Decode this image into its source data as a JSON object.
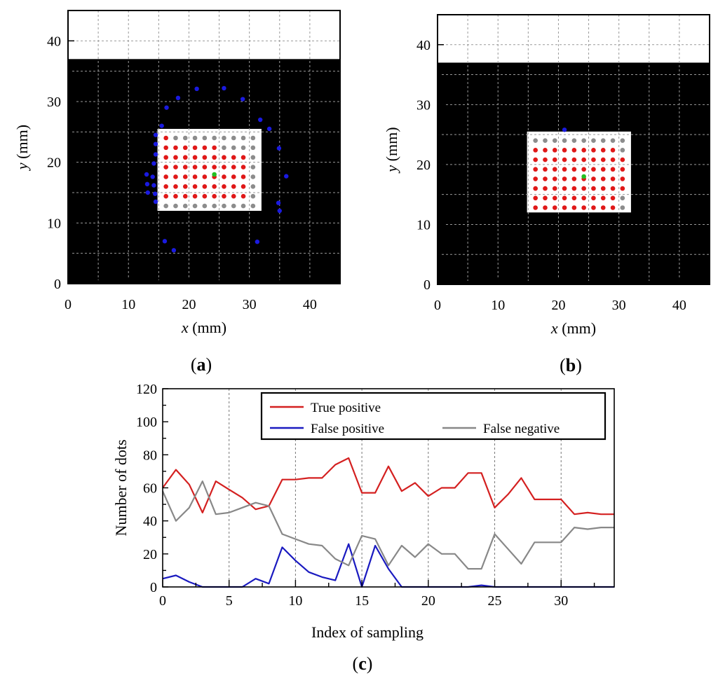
{
  "chart_data": [
    {
      "type": "scatter",
      "panel_label": "a",
      "title": "",
      "xlabel": {
        "var": "x",
        "unit": " (mm)"
      },
      "ylabel": {
        "var": "y",
        "unit": " (mm)"
      },
      "xlim": [
        0,
        45
      ],
      "ylim": [
        0,
        45
      ],
      "xticks": [
        "0",
        "10",
        "20",
        "30",
        "40"
      ],
      "yticks": [
        "0",
        "10",
        "20",
        "30",
        "40"
      ],
      "grid": true,
      "dark_region_y_max": 37,
      "white_patch": {
        "x": [
          14.8,
          32
        ],
        "y": [
          12,
          25.5
        ]
      },
      "grid_dots": {
        "x_start": 16.2,
        "x_step": 1.6,
        "cols": 10,
        "y_start": 12.8,
        "y_step": 1.6,
        "rows": 8
      },
      "dot_classes": [
        "gggggggggg",
        "rrrrrrrrrg",
        "rrrrrrrrrg",
        "rrrrrrrrrg",
        "rrrrrrrrrg",
        "rrrrrrrrrg",
        "rrrrrrgggg",
        "rggggggggg"
      ],
      "center_point": {
        "x": 24.2,
        "y": 18
      },
      "false_positive_points": [
        [
          14.5,
          24.5
        ],
        [
          14.5,
          23
        ],
        [
          14.5,
          21.3
        ],
        [
          14.2,
          19.8
        ],
        [
          13,
          18
        ],
        [
          14,
          17.6
        ],
        [
          13.1,
          16.4
        ],
        [
          14.2,
          16.2
        ],
        [
          13.2,
          15
        ],
        [
          14.4,
          14.8
        ],
        [
          14.5,
          13.5
        ],
        [
          15.5,
          26
        ],
        [
          16.3,
          29
        ],
        [
          18.2,
          30.6
        ],
        [
          21.3,
          32.1
        ],
        [
          25.8,
          32.2
        ],
        [
          28.9,
          30.4
        ],
        [
          31.8,
          27
        ],
        [
          33.3,
          25.5
        ],
        [
          34.9,
          22.3
        ],
        [
          36.1,
          17.7
        ],
        [
          34.8,
          13.3
        ],
        [
          35,
          12
        ],
        [
          31.3,
          6.9
        ],
        [
          16,
          7
        ],
        [
          17.5,
          5.5
        ]
      ]
    },
    {
      "type": "scatter",
      "panel_label": "b",
      "title": "",
      "xlabel": {
        "var": "x",
        "unit": " (mm)"
      },
      "ylabel": {
        "var": "y",
        "unit": " (mm)"
      },
      "xlim": [
        0,
        45
      ],
      "ylim": [
        0,
        45
      ],
      "xticks": [
        "0",
        "10",
        "20",
        "30",
        "40"
      ],
      "yticks": [
        "0",
        "10",
        "20",
        "30",
        "40"
      ],
      "grid": true,
      "dark_region_y_max": 37,
      "white_patch": {
        "x": [
          14.8,
          32
        ],
        "y": [
          12,
          25.5
        ]
      },
      "grid_dots": {
        "x_start": 16.2,
        "x_step": 1.6,
        "cols": 10,
        "y_start": 12.8,
        "y_step": 1.6,
        "rows": 8
      },
      "dot_classes": [
        "rrrrrrrrrg",
        "rrrrrrrrrg",
        "rrrrrrrrrr",
        "rrrrrrrrrr",
        "rrrrrrrrrr",
        "rrrrrrrrrr",
        "rrrrrrrrrg",
        "gggggggggg"
      ],
      "center_point": {
        "x": 24.2,
        "y": 18
      },
      "false_positive_points": [
        [
          21,
          25.8
        ]
      ]
    },
    {
      "type": "line",
      "panel_label": "c",
      "title": "",
      "xlabel": "Index of sampling",
      "ylabel": "Number of dots",
      "xlim": [
        0,
        34
      ],
      "ylim": [
        0,
        120
      ],
      "xticks": [
        "0",
        "5",
        "10",
        "15",
        "20",
        "25",
        "30"
      ],
      "yticks": [
        "0",
        "20",
        "40",
        "60",
        "80",
        "100",
        "120"
      ],
      "grid": "vertical",
      "legend_position": "top-right",
      "x": [
        0,
        1,
        2,
        3,
        4,
        5,
        6,
        7,
        8,
        9,
        10,
        11,
        12,
        13,
        14,
        15,
        16,
        17,
        18,
        19,
        20,
        21,
        22,
        23,
        24,
        25,
        26,
        27,
        28,
        29,
        30,
        31,
        32,
        33,
        34
      ],
      "series": [
        {
          "name": "True positive",
          "color": "#d42020",
          "values": [
            60,
            71,
            62,
            45,
            64,
            59,
            54,
            47,
            49,
            65,
            65,
            66,
            66,
            74,
            78,
            57,
            57,
            73,
            58,
            63,
            55,
            60,
            60,
            69,
            69,
            48,
            56,
            66,
            53,
            53,
            53,
            44,
            45,
            44,
            44
          ]
        },
        {
          "name": "False positive",
          "color": "#1a1ac0",
          "values": [
            5,
            7,
            3,
            0,
            0,
            0,
            0,
            5,
            2,
            24,
            16,
            9,
            6,
            4,
            26,
            0,
            25,
            11,
            0,
            0,
            0,
            0,
            0,
            0,
            1,
            0,
            0,
            0,
            0,
            0,
            0,
            0,
            0,
            0,
            0
          ]
        },
        {
          "name": "False negative",
          "color": "#888888",
          "values": [
            58,
            40,
            48,
            64,
            44,
            45,
            48,
            51,
            49,
            32,
            29,
            26,
            25,
            17,
            13,
            31,
            29,
            13,
            25,
            18,
            26,
            20,
            20,
            11,
            11,
            32,
            23,
            14,
            27,
            27,
            27,
            36,
            35,
            36,
            36
          ]
        }
      ]
    }
  ]
}
